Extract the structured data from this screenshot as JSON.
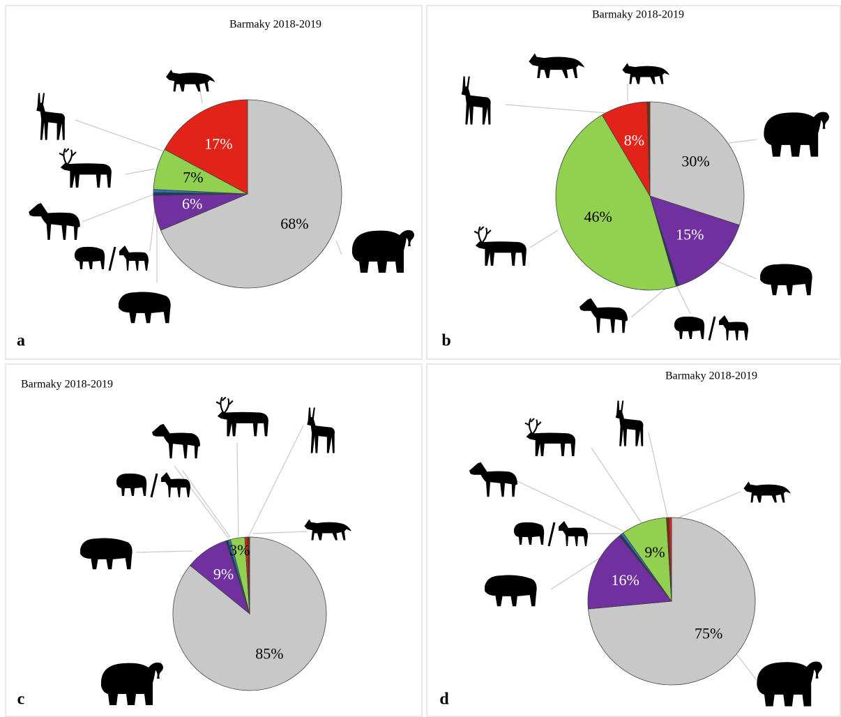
{
  "chart_data": [
    {
      "type": "pie",
      "title": "Barmaky 2018-2019",
      "label": "a",
      "values": [
        68,
        6,
        0.5,
        0.5,
        7,
        17
      ],
      "value_labels": [
        "68%",
        "6%",
        null,
        null,
        "7%",
        "17%"
      ],
      "colors": [
        "#c8c8c8",
        "#7030a0",
        "#1f3864",
        "#2e75b6",
        "#92d050",
        "#e2231a"
      ]
    },
    {
      "type": "pie",
      "title": "Barmaky 2018-2019",
      "label": "b",
      "values": [
        30,
        15,
        0.5,
        46,
        8,
        0.5
      ],
      "value_labels": [
        "30%",
        "15%",
        null,
        "46%",
        "8%",
        null
      ],
      "colors": [
        "#c8c8c8",
        "#7030a0",
        "#1f3864",
        "#92d050",
        "#e2231a",
        "#7b2c10"
      ]
    },
    {
      "type": "pie",
      "title": "Barmaky 2018-2019",
      "label": "c",
      "values": [
        85,
        9,
        0.5,
        0.5,
        3,
        0.5,
        0.5
      ],
      "value_labels": [
        "85%",
        "9%",
        null,
        null,
        "3%",
        null,
        null
      ],
      "colors": [
        "#c8c8c8",
        "#7030a0",
        "#1f3864",
        "#2e75b6",
        "#92d050",
        "#e2231a",
        "#7b2c10"
      ]
    },
    {
      "type": "pie",
      "title": "Barmaky 2018-2019",
      "label": "d",
      "values": [
        75,
        16,
        0.5,
        0.5,
        9,
        0.5,
        0.5
      ],
      "value_labels": [
        "75%",
        "16%",
        null,
        null,
        "9%",
        null,
        null
      ],
      "colors": [
        "#c8c8c8",
        "#7030a0",
        "#1f3864",
        "#2e75b6",
        "#92d050",
        "#7b2c10",
        "#e2231a"
      ]
    }
  ]
}
